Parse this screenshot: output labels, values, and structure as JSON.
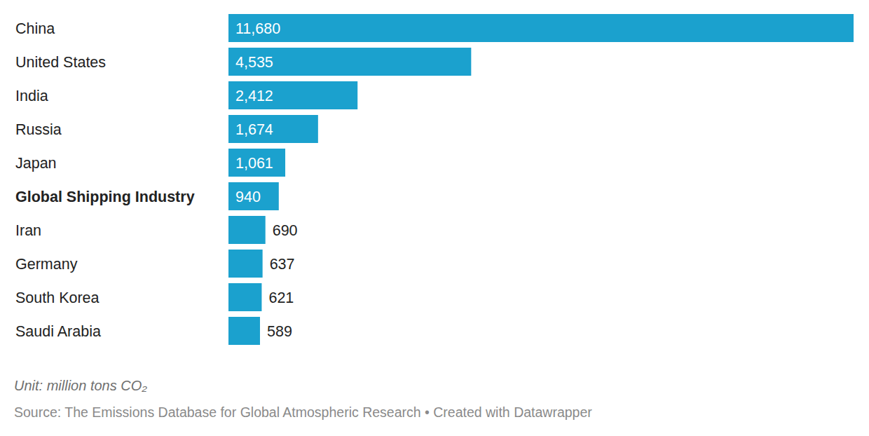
{
  "chart_data": {
    "type": "bar",
    "orientation": "horizontal",
    "categories": [
      "China",
      "United States",
      "India",
      "Russia",
      "Japan",
      "Global Shipping Industry",
      "Iran",
      "Germany",
      "South Korea",
      "Saudi Arabia"
    ],
    "values": [
      11680,
      4535,
      2412,
      1674,
      1061,
      940,
      690,
      637,
      621,
      589
    ],
    "value_labels": [
      "11,680",
      "4,535",
      "2,412",
      "1,674",
      "1,061",
      "940",
      "690",
      "637",
      "621",
      "589"
    ],
    "color": "#1ba1ce",
    "xlim": [
      0,
      11680
    ],
    "data_labels": true,
    "tick_labels": "y",
    "caption": "Unit: million tons CO₂",
    "source": "Source: The Emissions Database for Global Atmospheric Research • Created with Datawrapper"
  }
}
